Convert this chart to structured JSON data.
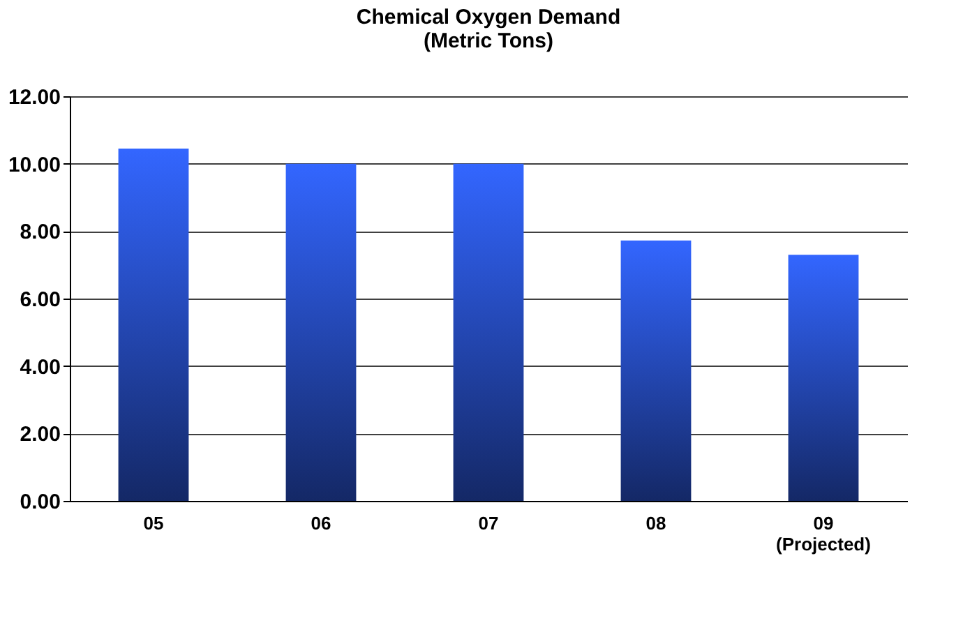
{
  "chart_data": {
    "type": "bar",
    "title": [
      "Chemical Oxygen Demand",
      "(Metric Tons)"
    ],
    "categories": [
      "05",
      "06",
      "07",
      "08",
      "09\n(Projected)"
    ],
    "series": [
      {
        "color": "#3366ff",
        "values": [
          10.45,
          10.0,
          10.0,
          7.72,
          7.3
        ]
      }
    ],
    "ylim": [
      0,
      12
    ],
    "yticks": [
      {
        "value": 0,
        "label": "0.00"
      },
      {
        "value": 2,
        "label": "2.00"
      },
      {
        "value": 4,
        "label": "4.00"
      },
      {
        "value": 6,
        "label": "6.00"
      },
      {
        "value": 8,
        "label": "8.00"
      },
      {
        "value": 10,
        "label": "10.00"
      },
      {
        "value": 12,
        "label": "12.00"
      }
    ],
    "grid": "y"
  }
}
